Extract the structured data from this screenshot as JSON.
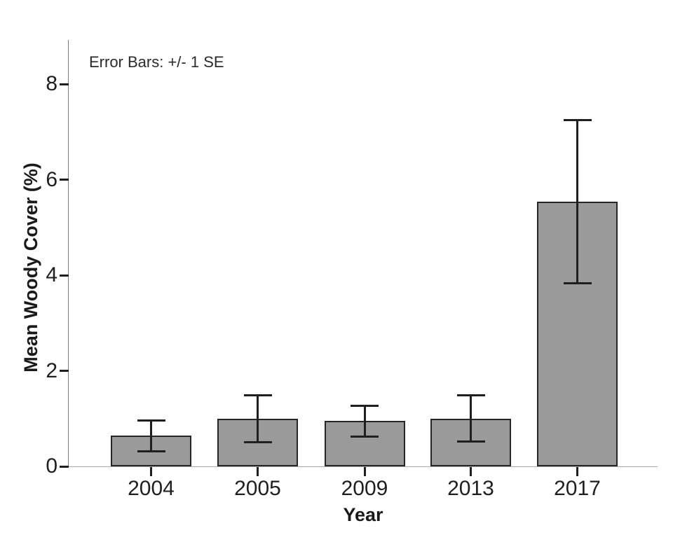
{
  "chart_data": {
    "type": "bar",
    "title": "",
    "annotation": "Error Bars: +/- 1 SE",
    "xlabel": "Year",
    "ylabel": "Mean Woody Cover (%)",
    "categories": [
      "2004",
      "2005",
      "2009",
      "2013",
      "2017"
    ],
    "series": [
      {
        "name": "Mean Woody Cover (%)",
        "values": [
          0.64,
          1.0,
          0.95,
          1.0,
          5.54
        ],
        "errors_se": [
          0.33,
          0.5,
          0.33,
          0.49,
          1.72
        ]
      }
    ],
    "yticks": [
      0,
      2,
      4,
      6,
      8
    ],
    "ylim": [
      0,
      8.9
    ],
    "grid": false,
    "legend_position": "none",
    "colors": {
      "bar_fill": "#9a9a9a",
      "bar_border": "#262626",
      "error_bar": "#1f1f1f",
      "tick_mark": "#1f1f1f",
      "axis_line": "#7d7d7d",
      "baseline": "#a8a8a8",
      "text": "#1f1f1f"
    }
  }
}
